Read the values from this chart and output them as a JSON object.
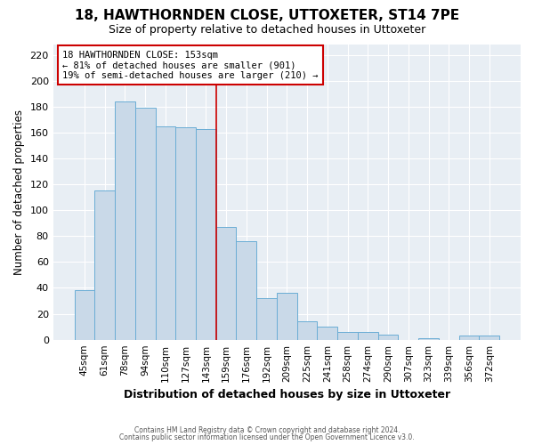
{
  "title": "18, HAWTHORNDEN CLOSE, UTTOXETER, ST14 7PE",
  "subtitle": "Size of property relative to detached houses in Uttoxeter",
  "xlabel": "Distribution of detached houses by size in Uttoxeter",
  "ylabel": "Number of detached properties",
  "bar_labels": [
    "45sqm",
    "61sqm",
    "78sqm",
    "94sqm",
    "110sqm",
    "127sqm",
    "143sqm",
    "159sqm",
    "176sqm",
    "192sqm",
    "209sqm",
    "225sqm",
    "241sqm",
    "258sqm",
    "274sqm",
    "290sqm",
    "307sqm",
    "323sqm",
    "339sqm",
    "356sqm",
    "372sqm"
  ],
  "bar_values": [
    38,
    115,
    184,
    179,
    165,
    164,
    163,
    87,
    76,
    32,
    36,
    14,
    10,
    6,
    6,
    4,
    0,
    1,
    0,
    3,
    3
  ],
  "bar_color": "#c9d9e8",
  "bar_edgecolor": "#6aadd5",
  "bar_linewidth": 0.7,
  "vline_color": "#cc0000",
  "vline_linewidth": 1.2,
  "annotation_text": "18 HAWTHORNDEN CLOSE: 153sqm\n← 81% of detached houses are smaller (901)\n19% of semi-detached houses are larger (210) →",
  "annotation_box_edgecolor": "#cc0000",
  "annotation_box_facecolor": "white",
  "ylim": [
    0,
    228
  ],
  "yticks": [
    0,
    20,
    40,
    60,
    80,
    100,
    120,
    140,
    160,
    180,
    200,
    220
  ],
  "footer1": "Contains HM Land Registry data © Crown copyright and database right 2024.",
  "footer2": "Contains public sector information licensed under the Open Government Licence v3.0.",
  "plot_bg_color": "#e8eef4",
  "fig_bg_color": "#ffffff",
  "grid_color": "#ffffff",
  "title_fontsize": 11,
  "subtitle_fontsize": 9
}
